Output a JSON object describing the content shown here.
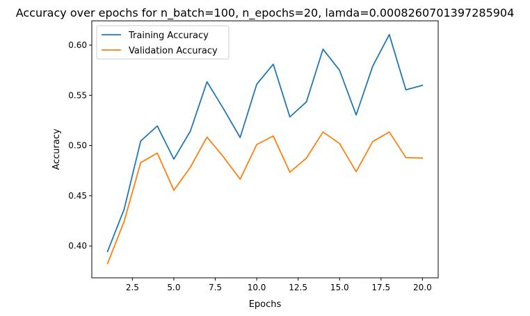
{
  "chart_data": {
    "type": "line",
    "title": "Accuracy over epochs for n_batch=100, n_epochs=20, lamda=0.0008260701397285904",
    "xlabel": "Epochs",
    "ylabel": "Accuracy",
    "xlim": [
      0.05,
      20.95
    ],
    "ylim": [
      0.3683,
      0.6242
    ],
    "xticks": [
      2.5,
      5.0,
      7.5,
      10.0,
      12.5,
      15.0,
      17.5,
      20.0
    ],
    "xtick_labels": [
      "2.5",
      "5.0",
      "7.5",
      "10.0",
      "12.5",
      "15.0",
      "17.5",
      "20.0"
    ],
    "yticks": [
      0.4,
      0.45,
      0.5,
      0.55,
      0.6
    ],
    "ytick_labels": [
      "0.40",
      "0.45",
      "0.50",
      "0.55",
      "0.60"
    ],
    "grid": false,
    "legend_position": "top-left",
    "x": [
      1,
      2,
      3,
      4,
      5,
      6,
      7,
      8,
      9,
      10,
      11,
      12,
      13,
      14,
      15,
      16,
      17,
      18,
      19,
      20
    ],
    "series": [
      {
        "name": "Training Accuracy",
        "color": "#1f77b4",
        "values": [
          0.3945,
          0.4365,
          0.5045,
          0.5195,
          0.4865,
          0.5145,
          0.5635,
          0.5365,
          0.508,
          0.561,
          0.581,
          0.5285,
          0.5435,
          0.596,
          0.575,
          0.5305,
          0.579,
          0.6105,
          0.5555,
          0.56
        ]
      },
      {
        "name": "Validation Accuracy",
        "color": "#ff7f0e",
        "values": [
          0.3825,
          0.4245,
          0.483,
          0.4925,
          0.4555,
          0.4785,
          0.5085,
          0.4885,
          0.4665,
          0.501,
          0.5095,
          0.4735,
          0.4875,
          0.5135,
          0.502,
          0.474,
          0.504,
          0.5135,
          0.488,
          0.4875
        ]
      }
    ]
  }
}
